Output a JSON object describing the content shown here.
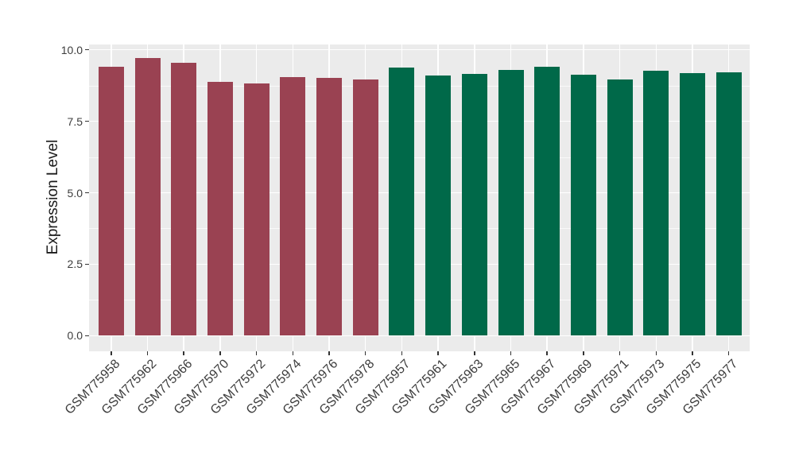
{
  "chart_data": {
    "type": "bar",
    "ylabel": "Expression Level",
    "xlabel": "",
    "ylim": [
      -0.5,
      10.2
    ],
    "yticks_major": [
      0,
      2.5,
      5,
      7.5,
      10
    ],
    "ytick_labels": [
      "0.0",
      "2.5",
      "5.0",
      "7.5",
      "10.0"
    ],
    "yticks_minor": [
      1.25,
      3.75,
      6.25,
      8.75
    ],
    "grid": "major and minor horizontal white gridlines, vertical white gridlines at bar centers, on gray panel",
    "legend_position": "none",
    "categories": [
      "GSM775958",
      "GSM775962",
      "GSM775966",
      "GSM775970",
      "GSM775972",
      "GSM775974",
      "GSM775976",
      "GSM775978",
      "GSM775957",
      "GSM775961",
      "GSM775963",
      "GSM775965",
      "GSM775967",
      "GSM775969",
      "GSM775971",
      "GSM775973",
      "GSM775975",
      "GSM775977"
    ],
    "values": [
      9.41,
      9.7,
      9.56,
      8.87,
      8.83,
      9.05,
      9.03,
      8.97,
      9.37,
      9.11,
      9.15,
      9.3,
      9.4,
      9.13,
      8.96,
      9.26,
      9.19,
      9.22
    ],
    "bar_colors": [
      "#9A4252",
      "#9A4252",
      "#9A4252",
      "#9A4252",
      "#9A4252",
      "#9A4252",
      "#9A4252",
      "#9A4252",
      "#006949",
      "#006949",
      "#006949",
      "#006949",
      "#006949",
      "#006949",
      "#006949",
      "#006949",
      "#006949",
      "#006949"
    ],
    "colors": {
      "group_left": "#9A4252",
      "group_right": "#006949",
      "panel_background": "#EBEBEB",
      "figure_background": "#FFFFFF",
      "gridline": "#FFFFFF",
      "tick_mark": "#333333",
      "tick_label": "#3C3C3C",
      "axis_title": "#1A1A1A"
    }
  }
}
